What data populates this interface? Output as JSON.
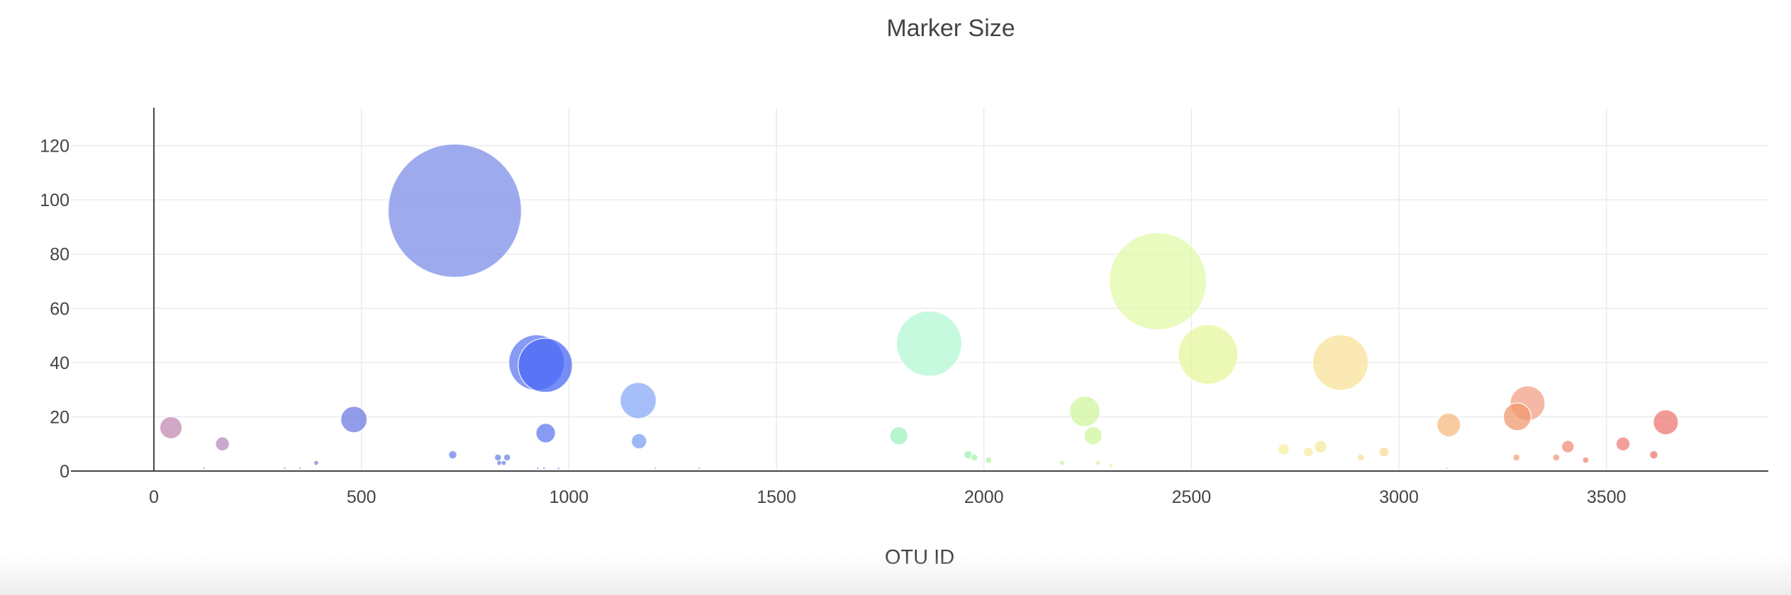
{
  "chart_data": {
    "type": "scatter",
    "title": "Marker Size",
    "xlabel": "OTU ID",
    "ylabel": "",
    "xlim": [
      -200,
      3890
    ],
    "ylim": [
      0,
      134
    ],
    "xticks": [
      0,
      500,
      1000,
      1500,
      2000,
      2500,
      3000,
      3500
    ],
    "yticks": [
      0,
      20,
      40,
      60,
      80,
      100,
      120
    ],
    "grid": true,
    "legend": "none",
    "size_mode": "marker size equals y value",
    "points": [
      {
        "x": 41,
        "y": 16,
        "color": "#c28bb3"
      },
      {
        "x": 165,
        "y": 10,
        "color": "#b58bbf"
      },
      {
        "x": 120,
        "y": 1,
        "color": "#b58bbf"
      },
      {
        "x": 315,
        "y": 1,
        "color": "#8a8fd6"
      },
      {
        "x": 352,
        "y": 1,
        "color": "#8a8fd6"
      },
      {
        "x": 391,
        "y": 3,
        "color": "#7f8ae0"
      },
      {
        "x": 482,
        "y": 19,
        "color": "#6d7be0"
      },
      {
        "x": 725,
        "y": 96,
        "color": "#7c8ee8"
      },
      {
        "x": 720,
        "y": 6,
        "color": "#6d84ea"
      },
      {
        "x": 829,
        "y": 5,
        "color": "#6d84ea"
      },
      {
        "x": 832,
        "y": 3,
        "color": "#6d84ea"
      },
      {
        "x": 843,
        "y": 3,
        "color": "#6d84ea"
      },
      {
        "x": 851,
        "y": 5,
        "color": "#6d84ea"
      },
      {
        "x": 922,
        "y": 40,
        "color": "#5f78f0"
      },
      {
        "x": 943,
        "y": 39,
        "color": "#4a67f5"
      },
      {
        "x": 944,
        "y": 14,
        "color": "#5f78f0"
      },
      {
        "x": 925,
        "y": 1,
        "color": "#6d84ea"
      },
      {
        "x": 940,
        "y": 1,
        "color": "#6d84ea"
      },
      {
        "x": 975,
        "y": 1,
        "color": "#6d84ea"
      },
      {
        "x": 1167,
        "y": 26,
        "color": "#8aaaf7"
      },
      {
        "x": 1169,
        "y": 11,
        "color": "#7d9ff5"
      },
      {
        "x": 1208,
        "y": 1,
        "color": "#8aaaf7"
      },
      {
        "x": 1314,
        "y": 1,
        "color": "#8aaaf7"
      },
      {
        "x": 1795,
        "y": 13,
        "color": "#9ff2bf"
      },
      {
        "x": 1868,
        "y": 47,
        "color": "#b3f7d2"
      },
      {
        "x": 1962,
        "y": 6,
        "color": "#9ff2b5"
      },
      {
        "x": 1977,
        "y": 5,
        "color": "#a6f2a8"
      },
      {
        "x": 2011,
        "y": 4,
        "color": "#aff2a3"
      },
      {
        "x": 2188,
        "y": 3,
        "color": "#c0f2a0"
      },
      {
        "x": 2243,
        "y": 22,
        "color": "#cff59f"
      },
      {
        "x": 2263,
        "y": 13,
        "color": "#cff59f"
      },
      {
        "x": 2275,
        "y": 3,
        "color": "#d4f5a0"
      },
      {
        "x": 2306,
        "y": 2,
        "color": "#d9f5a3"
      },
      {
        "x": 2419,
        "y": 70,
        "color": "#e1f9a8"
      },
      {
        "x": 2540,
        "y": 43,
        "color": "#e6f59c"
      },
      {
        "x": 2722,
        "y": 8,
        "color": "#f5f0a0"
      },
      {
        "x": 2782,
        "y": 7,
        "color": "#f5eea3"
      },
      {
        "x": 2811,
        "y": 9,
        "color": "#f5e89f"
      },
      {
        "x": 2859,
        "y": 40,
        "color": "#f8e29a"
      },
      {
        "x": 2908,
        "y": 5,
        "color": "#f8df9a"
      },
      {
        "x": 2964,
        "y": 7,
        "color": "#f8d995"
      },
      {
        "x": 3115,
        "y": 1,
        "color": "#f5c08c"
      },
      {
        "x": 3120,
        "y": 17,
        "color": "#f5ba80"
      },
      {
        "x": 3283,
        "y": 5,
        "color": "#f3a47a"
      },
      {
        "x": 3285,
        "y": 20,
        "color": "#f09a6e"
      },
      {
        "x": 3310,
        "y": 25,
        "color": "#f2a085"
      },
      {
        "x": 3379,
        "y": 5,
        "color": "#f09a7a"
      },
      {
        "x": 3407,
        "y": 9,
        "color": "#ef8e7a"
      },
      {
        "x": 3450,
        "y": 4,
        "color": "#ee8a75"
      },
      {
        "x": 3540,
        "y": 10,
        "color": "#ee8078"
      },
      {
        "x": 3614,
        "y": 6,
        "color": "#ec7a70"
      },
      {
        "x": 3643,
        "y": 18,
        "color": "#ec7770"
      }
    ]
  }
}
